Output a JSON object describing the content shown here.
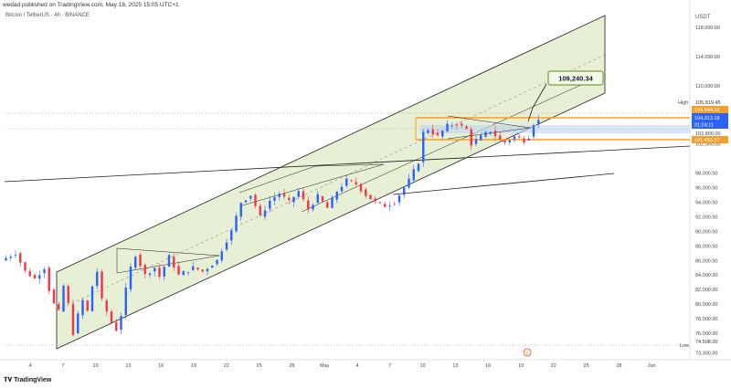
{
  "header": {
    "published_by": "wedad published on TradingView.com, May 18, 2025 15:05 UTC+1",
    "symbol": "Bitcoin / TetherUS · 4h · BINANCE",
    "currency": "USDT"
  },
  "footer": {
    "brand": "TradingView",
    "brand_icon": "tradingview-logo-icon"
  },
  "colors": {
    "up": "#2962ff",
    "down": "#f23645",
    "channel_fill": "#e3edcc",
    "channel_line": "#1e1e1e",
    "orange": "#f59f2b",
    "target_box_border": "#5a8a1a",
    "current_tag": "#2962ff",
    "high_tag": "#f59f2b",
    "support_tag": "#f59f2b"
  },
  "chart_data": {
    "type": "candlestick",
    "x_ticks": [
      "4",
      "7",
      "10",
      "13",
      "16",
      "19",
      "22",
      "25",
      "28",
      "May",
      "4",
      "7",
      "10",
      "13",
      "16",
      "19",
      "22",
      "25",
      "28",
      "Jun"
    ],
    "y_ticks": [
      "118,000.00",
      "114,000.00",
      "110,000.00",
      "102,000.00",
      "98,000.00",
      "96,000.00",
      "94,000.00",
      "92,000.00",
      "90,000.00",
      "88,000.00",
      "86,000.00",
      "84,000.00",
      "82,000.00",
      "80,000.00",
      "78,000.00",
      "76,000.00",
      "73,300.00"
    ],
    "ylim": [
      72500,
      120500
    ],
    "price_labels": {
      "high_label": "High",
      "high_value": "105,819.45",
      "resistance": "104,944.32",
      "current_price": "104,913.18",
      "countdown": "01:24:11",
      "level_mid": "102,800.00",
      "support": "101,453.17",
      "low_label": "Low",
      "low_value": "74,508.00"
    },
    "target_label": "109,240.34",
    "target_value": 109240.34,
    "key_levels": [
      104944.32,
      101453.17
    ],
    "current_price_value": 104913.18,
    "day_low_value": 74508,
    "path_anchors": [
      [
        0,
        86000
      ],
      [
        3,
        87000
      ],
      [
        5,
        84500
      ],
      [
        7,
        83500
      ],
      [
        9,
        85000
      ],
      [
        10,
        82000
      ],
      [
        11,
        80000
      ],
      [
        12,
        79000
      ],
      [
        13,
        82500
      ],
      [
        14,
        80000
      ],
      [
        15,
        76000
      ],
      [
        16,
        78500
      ],
      [
        17,
        80500
      ],
      [
        18,
        79000
      ],
      [
        19,
        82500
      ],
      [
        20,
        84500
      ],
      [
        21,
        80500
      ],
      [
        22,
        79000
      ],
      [
        23,
        77500
      ],
      [
        24,
        76500
      ],
      [
        25,
        78500
      ],
      [
        26,
        82000
      ],
      [
        27,
        85000
      ],
      [
        28,
        86800
      ],
      [
        30,
        84000
      ],
      [
        32,
        85000
      ],
      [
        33,
        83800
      ],
      [
        35,
        86500
      ],
      [
        37,
        84000
      ],
      [
        40,
        85000
      ],
      [
        42,
        84500
      ],
      [
        45,
        86000
      ],
      [
        46,
        87500
      ],
      [
        48,
        90000
      ],
      [
        49,
        92000
      ],
      [
        50,
        94000
      ],
      [
        52,
        95000
      ],
      [
        54,
        92000
      ],
      [
        56,
        94200
      ],
      [
        58,
        95200
      ],
      [
        60,
        94000
      ],
      [
        62,
        95500
      ],
      [
        64,
        93000
      ],
      [
        66,
        94800
      ],
      [
        68,
        93200
      ],
      [
        70,
        95500
      ],
      [
        72,
        97000
      ],
      [
        74,
        96500
      ],
      [
        76,
        95000
      ],
      [
        78,
        94000
      ],
      [
        80,
        93500
      ],
      [
        82,
        94000
      ],
      [
        84,
        96000
      ],
      [
        85,
        97000
      ],
      [
        87,
        99500
      ],
      [
        88,
        103500
      ],
      [
        89,
        104000
      ],
      [
        91,
        103000
      ],
      [
        93,
        104500
      ],
      [
        95,
        104800
      ],
      [
        97,
        104000
      ],
      [
        98,
        102000
      ],
      [
        100,
        103000
      ],
      [
        102,
        103800
      ],
      [
        104,
        102500
      ],
      [
        105,
        102200
      ],
      [
        107,
        103000
      ],
      [
        109,
        102500
      ],
      [
        110,
        103000
      ],
      [
        111,
        104800
      ],
      [
        112,
        105200
      ]
    ]
  }
}
